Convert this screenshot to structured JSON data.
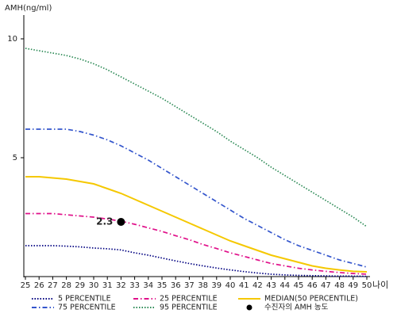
{
  "chart_data": {
    "type": "line",
    "y_label": "AMH(ng/ml)",
    "x_label": "나이",
    "x": [
      25,
      26,
      27,
      28,
      29,
      30,
      31,
      32,
      33,
      34,
      35,
      36,
      37,
      38,
      39,
      40,
      41,
      42,
      43,
      44,
      45,
      46,
      47,
      48,
      49,
      50
    ],
    "xlim": [
      25,
      50
    ],
    "xticks": [
      25,
      26,
      27,
      28,
      29,
      30,
      31,
      32,
      33,
      34,
      35,
      36,
      37,
      38,
      39,
      40,
      41,
      42,
      43,
      44,
      45,
      46,
      47,
      48,
      49,
      50
    ],
    "ylim": [
      0,
      11
    ],
    "yticks": [
      5,
      10
    ],
    "series": [
      {
        "name": "5 PERCENTILE",
        "color": "#000080",
        "style": "dotted",
        "values": [
          1.3,
          1.3,
          1.3,
          1.28,
          1.25,
          1.2,
          1.17,
          1.12,
          1.0,
          0.9,
          0.78,
          0.66,
          0.55,
          0.45,
          0.36,
          0.28,
          0.21,
          0.15,
          0.1,
          0.07,
          0.05,
          0.04,
          0.03,
          0.02,
          0.02,
          0.01
        ]
      },
      {
        "name": "25 PERCENTILE",
        "color": "#e0108a",
        "style": "dashdot",
        "values": [
          2.65,
          2.65,
          2.65,
          2.6,
          2.55,
          2.5,
          2.42,
          2.33,
          2.2,
          2.05,
          1.9,
          1.72,
          1.55,
          1.35,
          1.18,
          1.0,
          0.85,
          0.7,
          0.55,
          0.45,
          0.35,
          0.28,
          0.22,
          0.17,
          0.13,
          0.1
        ]
      },
      {
        "name": "MEDIAN(50 PERCENTILE)",
        "color": "#f5c800",
        "style": "solid",
        "values": [
          4.2,
          4.2,
          4.15,
          4.1,
          4.0,
          3.9,
          3.7,
          3.5,
          3.25,
          3.0,
          2.75,
          2.5,
          2.25,
          2.0,
          1.75,
          1.5,
          1.3,
          1.1,
          0.9,
          0.75,
          0.6,
          0.45,
          0.35,
          0.28,
          0.22,
          0.2
        ]
      },
      {
        "name": "75 PERCENTILE",
        "color": "#3355cc",
        "style": "dashdot",
        "values": [
          6.2,
          6.2,
          6.2,
          6.2,
          6.1,
          5.95,
          5.75,
          5.5,
          5.2,
          4.9,
          4.55,
          4.2,
          3.85,
          3.5,
          3.15,
          2.8,
          2.45,
          2.15,
          1.85,
          1.55,
          1.3,
          1.1,
          0.9,
          0.7,
          0.55,
          0.4
        ]
      },
      {
        "name": "95 PERCENTILE",
        "color": "#2e8b57",
        "style": "dotted",
        "values": [
          9.6,
          9.5,
          9.4,
          9.3,
          9.15,
          8.95,
          8.7,
          8.4,
          8.1,
          7.8,
          7.5,
          7.15,
          6.8,
          6.45,
          6.1,
          5.7,
          5.35,
          5.0,
          4.6,
          4.25,
          3.9,
          3.55,
          3.2,
          2.85,
          2.5,
          2.1
        ]
      },
      {
        "name": "수진자의 AMH 농도",
        "color": "#000000",
        "style": "dot",
        "x": [
          32
        ],
        "values": [
          2.3
        ]
      }
    ]
  }
}
